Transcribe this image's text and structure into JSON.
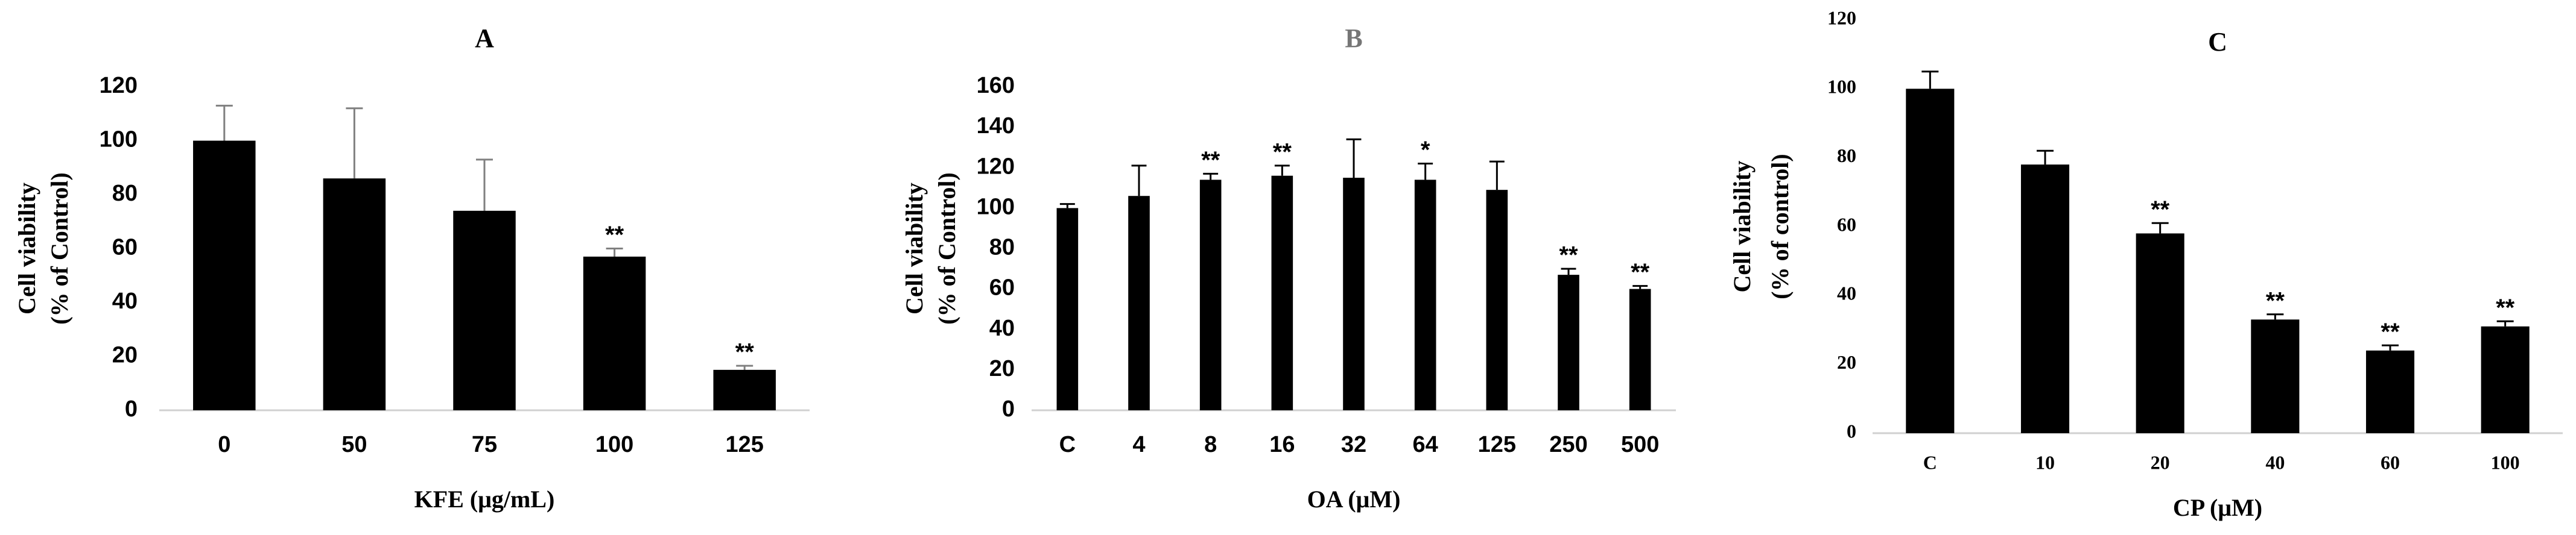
{
  "chart_data": [
    {
      "type": "bar",
      "title": "A",
      "title_color": "#000000",
      "xlabel": "KFE (μg/mL)",
      "ylabel": [
        "Cell viability",
        "(% of Control)"
      ],
      "categories": [
        "0",
        "50",
        "75",
        "100",
        "125"
      ],
      "values": [
        100,
        86,
        74,
        57,
        15
      ],
      "errors": [
        13,
        26,
        19,
        3,
        1.5
      ],
      "annotations": [
        null,
        null,
        null,
        "**",
        "**"
      ],
      "color": "#000000",
      "error_color": "#808080",
      "ylim": [
        0,
        120
      ],
      "yticks": [
        0,
        20,
        40,
        60,
        80,
        100,
        120
      ]
    },
    {
      "type": "bar",
      "title": "B",
      "title_color": "#767676",
      "xlabel": "OA (μM)",
      "ylabel": [
        "Cell viability",
        "(% of Control)"
      ],
      "categories": [
        "C",
        "4",
        "8",
        "16",
        "32",
        "64",
        "125",
        "250",
        "500"
      ],
      "values": [
        100,
        106,
        114,
        116,
        115,
        114,
        109,
        67,
        60
      ],
      "errors": [
        2,
        15,
        3,
        5,
        19,
        8,
        14,
        3,
        1.5
      ],
      "annotations": [
        null,
        null,
        "**",
        "**",
        null,
        "*",
        null,
        "**",
        "**"
      ],
      "color": "#000000",
      "error_color": "#000000",
      "ylim": [
        0,
        160
      ],
      "yticks": [
        0,
        20,
        40,
        60,
        80,
        100,
        120,
        140,
        160
      ]
    },
    {
      "type": "bar",
      "title": "C",
      "title_color": "#000000",
      "xlabel": "CP (μM)",
      "ylabel": [
        "Cell viability",
        "(% of control)"
      ],
      "categories": [
        "C",
        "10",
        "20",
        "40",
        "60",
        "100"
      ],
      "values": [
        100,
        78,
        58,
        33,
        24,
        31
      ],
      "errors": [
        5,
        4,
        3,
        1.5,
        1.5,
        1.5
      ],
      "annotations": [
        null,
        null,
        "**",
        "**",
        "**",
        "**"
      ],
      "color": "#000000",
      "error_color": "#000000",
      "ylim": [
        0,
        120
      ],
      "yticks": [
        0,
        20,
        40,
        60,
        80,
        100,
        120
      ]
    }
  ]
}
